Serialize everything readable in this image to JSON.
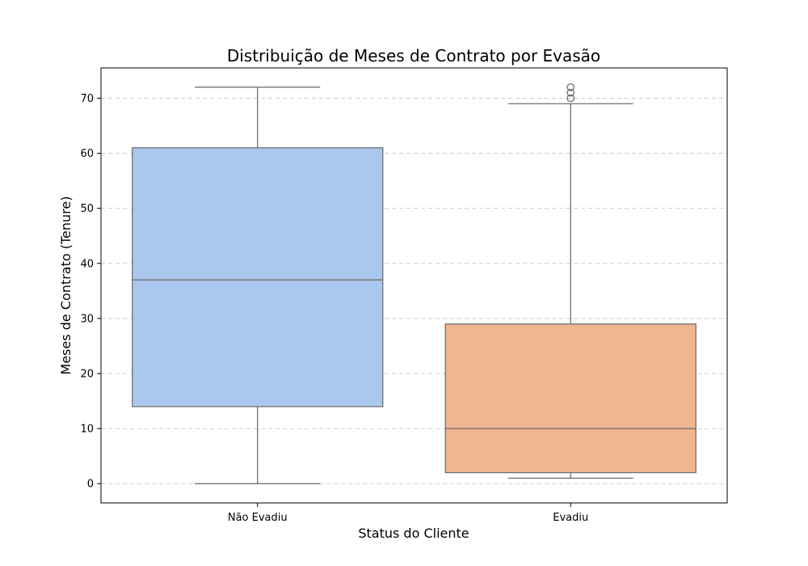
{
  "chart_data": {
    "type": "box",
    "title": "Distribuição de Meses de Contrato por Evasão",
    "xlabel": "Status do Cliente",
    "ylabel": "Meses de Contrato (Tenure)",
    "ylim": [
      -3.5,
      75.5
    ],
    "yticks": [
      0,
      10,
      20,
      30,
      40,
      50,
      60,
      70
    ],
    "grid": true,
    "legend": "none",
    "box_edge_color": "#707070",
    "categories": [
      "Não Evadiu",
      "Evadiu"
    ],
    "boxes": [
      {
        "category": "Não Evadiu",
        "color": "#aac8ed",
        "whisker_low": 0,
        "q1": 14,
        "median": 37,
        "q3": 61,
        "whisker_high": 72,
        "outliers": []
      },
      {
        "category": "Evadiu",
        "color": "#f0b690",
        "whisker_low": 1,
        "q1": 2,
        "median": 10,
        "q3": 29,
        "whisker_high": 69,
        "outliers": [
          70,
          71,
          72
        ]
      }
    ]
  }
}
